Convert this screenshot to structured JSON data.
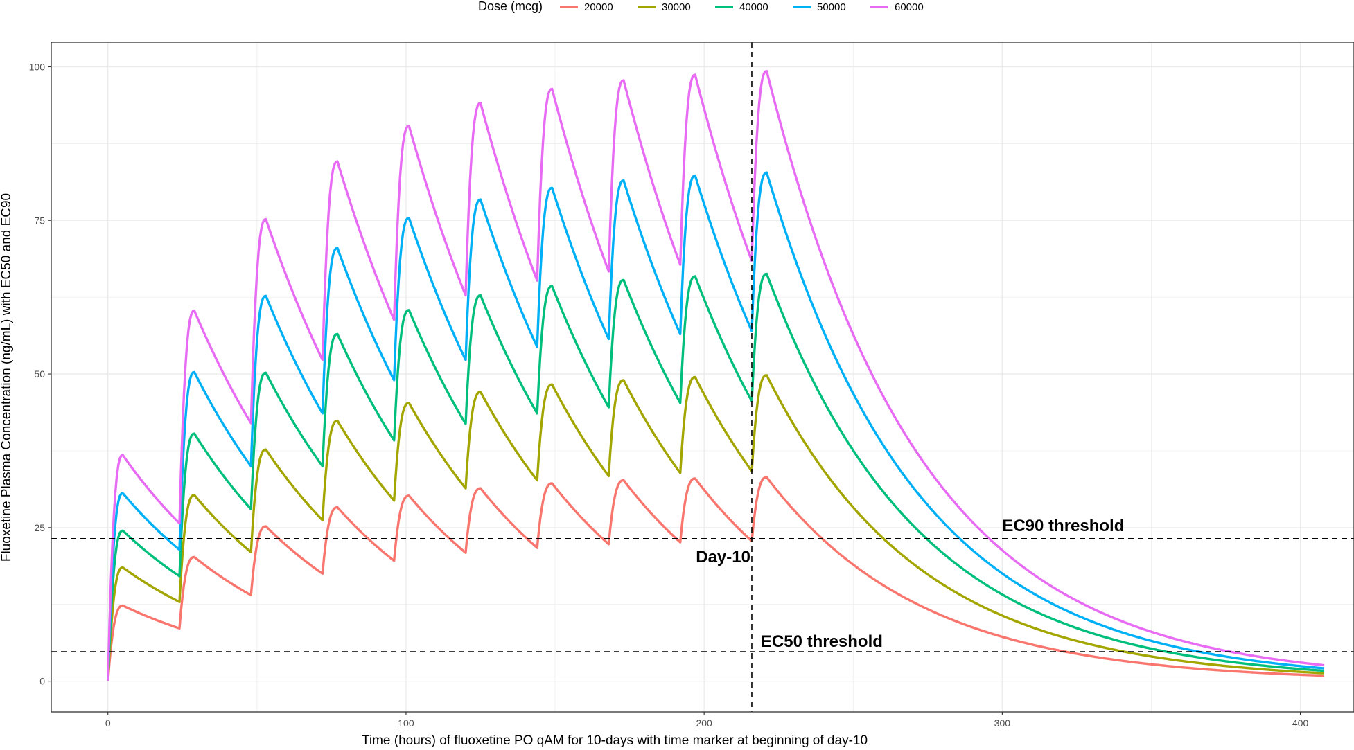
{
  "chart_data": {
    "type": "line",
    "title": "",
    "xlabel": "Time (hours) of fluoxetine PO qAM for 10-days with time marker at beginning of day-10",
    "ylabel": "Fluoxetine Plasma Concentration (ng/mL) with EC50 and EC90",
    "xlim": [
      -19,
      418
    ],
    "ylim": [
      -5,
      104
    ],
    "x_ticks": [
      0,
      100,
      200,
      300,
      400
    ],
    "y_ticks": [
      0,
      25,
      50,
      75,
      100
    ],
    "grid": true,
    "legend": {
      "title": "Dose (mcg)",
      "position": "top"
    },
    "dosing": {
      "interval_hours": 24,
      "dose_count": 10,
      "end_hour": 408
    },
    "series": [
      {
        "name": "20000",
        "color": "#F8766D",
        "peaks": [
          12.3,
          20.2,
          25.2,
          28.3,
          30.2,
          31.4,
          32.2,
          32.7,
          33.0,
          33.2
        ],
        "troughs": [
          8.6,
          14.0,
          17.5,
          19.6,
          20.9,
          21.7,
          22.3,
          22.6,
          22.8,
          23.0
        ],
        "end_value": 0.9
      },
      {
        "name": "30000",
        "color": "#A3A500",
        "peaks": [
          18.5,
          30.3,
          37.7,
          42.4,
          45.3,
          47.1,
          48.3,
          49.0,
          49.5,
          49.8
        ],
        "troughs": [
          12.9,
          21.0,
          26.2,
          29.4,
          31.4,
          32.7,
          33.4,
          33.9,
          34.2,
          34.4
        ],
        "end_value": 1.3
      },
      {
        "name": "40000",
        "color": "#00BF7D",
        "peaks": [
          24.5,
          40.3,
          50.2,
          56.5,
          60.4,
          62.8,
          64.3,
          65.3,
          65.9,
          66.3
        ],
        "troughs": [
          17.1,
          28.0,
          35.0,
          39.2,
          41.9,
          43.6,
          44.6,
          45.3,
          45.6,
          45.9
        ],
        "end_value": 1.7
      },
      {
        "name": "50000",
        "color": "#00B0F6",
        "peaks": [
          30.6,
          50.3,
          62.7,
          70.5,
          75.4,
          78.4,
          80.3,
          81.5,
          82.3,
          82.8
        ],
        "troughs": [
          21.4,
          35.0,
          43.6,
          49.0,
          52.3,
          54.4,
          55.7,
          56.5,
          57.0,
          57.3
        ],
        "end_value": 2.1
      },
      {
        "name": "60000",
        "color": "#E76BF3",
        "peaks": [
          36.8,
          60.3,
          75.2,
          84.6,
          90.4,
          94.1,
          96.4,
          97.8,
          98.7,
          99.3
        ],
        "troughs": [
          25.7,
          42.0,
          52.3,
          58.8,
          62.8,
          65.2,
          66.7,
          67.8,
          68.4,
          68.8
        ],
        "end_value": 2.6
      }
    ],
    "reference_lines": [
      {
        "axis": "y",
        "value": 23.2,
        "label": "EC90 threshold",
        "style": "dashed"
      },
      {
        "axis": "y",
        "value": 4.8,
        "label": "EC50 threshold",
        "style": "dashed"
      },
      {
        "axis": "x",
        "value": 216,
        "label": "Day-10",
        "style": "dashed"
      }
    ]
  }
}
